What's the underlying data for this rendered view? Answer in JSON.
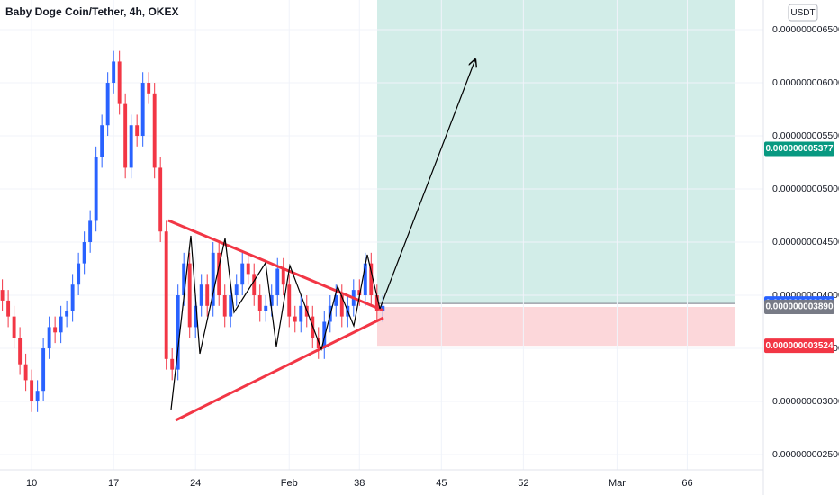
{
  "chart_data": {
    "type": "candlestick",
    "title": "Baby Doge Coin/Tether, 4h, OKEX",
    "currency": "USDT",
    "up_color": "#2962ff",
    "down_color": "#f23645",
    "xlim": [
      7.3,
      72.5
    ],
    "xticks": [
      10,
      17,
      24,
      {
        "value": 32,
        "label": "Feb"
      },
      38,
      45,
      52,
      {
        "value": 60,
        "label": "Mar"
      },
      66
    ],
    "ylim": [
      2.356e-09,
      6.78e-09
    ],
    "yticks": [
      {
        "value": 6.5e-09,
        "label": "0.000000006500"
      },
      {
        "value": 6e-09,
        "label": "0.000000006000"
      },
      {
        "value": 5.5e-09,
        "label": "0.000000005500"
      },
      {
        "value": 5e-09,
        "label": "0.000000005000"
      },
      {
        "value": 4.5e-09,
        "label": "0.000000004500"
      },
      {
        "value": 4e-09,
        "label": "0.000000004000"
      },
      {
        "value": 3.5e-09,
        "label": "0.000000003500"
      },
      {
        "value": 3e-09,
        "label": "0.000000003000"
      },
      {
        "value": 2.5e-09,
        "label": "0.000000002500"
      }
    ],
    "price_markers": [
      {
        "value": 5.377e-09,
        "label": "0.000000005377",
        "color": "#089981"
      },
      {
        "value": 3.923e-09,
        "label": "0.000000003923",
        "color": "#2962ff"
      },
      {
        "value": 3.89e-09,
        "label": "0.000000003890",
        "color": "#787b86"
      },
      {
        "value": 3.524e-09,
        "label": "0.000000003524",
        "color": "#f23645"
      }
    ],
    "x": [
      7.5,
      8,
      8.5,
      9,
      9.5,
      10,
      10.5,
      11,
      11.5,
      12,
      12.5,
      13,
      13.5,
      14,
      14.5,
      15,
      15.5,
      16,
      16.5,
      17,
      17.5,
      18,
      18.5,
      19,
      19.5,
      20,
      20.5,
      21,
      21.5,
      22,
      22.5,
      23,
      23.5,
      24,
      24.5,
      25,
      25.5,
      26,
      26.5,
      27,
      27.5,
      28,
      28.5,
      29,
      29.5,
      30,
      30.5,
      31,
      31.5,
      32,
      32.5,
      33,
      33.5,
      34,
      34.5,
      35,
      35.5,
      36,
      36.5,
      37,
      37.5,
      38,
      38.5,
      39,
      39.5,
      40
    ],
    "open": [
      4.05e-09,
      3.95e-09,
      3.8e-09,
      3.6e-09,
      3.35e-09,
      3.2e-09,
      3e-09,
      3.1e-09,
      3.5e-09,
      3.7e-09,
      3.65e-09,
      3.8e-09,
      3.85e-09,
      4.1e-09,
      4.3e-09,
      4.5e-09,
      4.7e-09,
      5.3e-09,
      5.6e-09,
      6e-09,
      6.2e-09,
      5.8e-09,
      5.2e-09,
      5.6e-09,
      5.5e-09,
      6e-09,
      5.9e-09,
      5.2e-09,
      4.6e-09,
      3.4e-09,
      3.3e-09,
      4e-09,
      4.3e-09,
      3.7e-09,
      3.9e-09,
      4.1e-09,
      3.9e-09,
      4.4e-09,
      4e-09,
      3.8e-09,
      4e-09,
      4.1e-09,
      4.3e-09,
      4.2e-09,
      4e-09,
      3.85e-09,
      3.9e-09,
      4e-09,
      4.25e-09,
      4.1e-09,
      3.8e-09,
      3.75e-09,
      3.9e-09,
      3.8e-09,
      3.6e-09,
      3.5e-09,
      3.75e-09,
      3.9e-09,
      4e-09,
      3.8e-09,
      3.9e-09,
      4.05e-09,
      4e-09,
      4.3e-09,
      4e-09,
      3.85e-09
    ],
    "high": [
      4.15e-09,
      4.05e-09,
      3.9e-09,
      3.7e-09,
      3.45e-09,
      3.3e-09,
      3.2e-09,
      3.6e-09,
      3.8e-09,
      3.8e-09,
      3.9e-09,
      3.95e-09,
      4.2e-09,
      4.4e-09,
      4.6e-09,
      4.8e-09,
      5.4e-09,
      5.7e-09,
      6.1e-09,
      6.3e-09,
      6.3e-09,
      5.9e-09,
      5.7e-09,
      5.7e-09,
      6.1e-09,
      6.1e-09,
      6e-09,
      5.3e-09,
      4.7e-09,
      3.5e-09,
      4.1e-09,
      4.4e-09,
      4.4e-09,
      4e-09,
      4.2e-09,
      4.2e-09,
      4.5e-09,
      4.5e-09,
      4.1e-09,
      4.1e-09,
      4.2e-09,
      4.4e-09,
      4.4e-09,
      4.3e-09,
      4.1e-09,
      4e-09,
      4.1e-09,
      4.35e-09,
      4.35e-09,
      4.2e-09,
      3.9e-09,
      4e-09,
      4e-09,
      3.9e-09,
      3.7e-09,
      3.85e-09,
      4e-09,
      4.1e-09,
      4.1e-09,
      4e-09,
      4.15e-09,
      4.15e-09,
      4.4e-09,
      4.4e-09,
      4.1e-09,
      4e-09
    ],
    "low": [
      3.85e-09,
      3.7e-09,
      3.5e-09,
      3.25e-09,
      3.1e-09,
      2.9e-09,
      2.9e-09,
      3e-09,
      3.4e-09,
      3.55e-09,
      3.55e-09,
      3.7e-09,
      3.75e-09,
      4e-09,
      4.2e-09,
      4.4e-09,
      4.6e-09,
      5.2e-09,
      5.5e-09,
      5.9e-09,
      5.7e-09,
      5.1e-09,
      5.1e-09,
      5.4e-09,
      5.4e-09,
      5.8e-09,
      5.1e-09,
      4.5e-09,
      3.3e-09,
      3.2e-09,
      3.2e-09,
      3.9e-09,
      3.6e-09,
      3.6e-09,
      3.8e-09,
      3.8e-09,
      3.8e-09,
      3.9e-09,
      3.7e-09,
      3.7e-09,
      3.9e-09,
      4e-09,
      4.1e-09,
      3.9e-09,
      3.75e-09,
      3.75e-09,
      3.8e-09,
      3.9e-09,
      4e-09,
      3.7e-09,
      3.65e-09,
      3.65e-09,
      3.7e-09,
      3.5e-09,
      3.4e-09,
      3.4e-09,
      3.65e-09,
      3.8e-09,
      3.7e-09,
      3.7e-09,
      3.8e-09,
      3.9e-09,
      3.9e-09,
      3.9e-09,
      3.75e-09,
      3.75e-09
    ],
    "close": [
      3.95e-09,
      3.8e-09,
      3.6e-09,
      3.35e-09,
      3.2e-09,
      3e-09,
      3.1e-09,
      3.5e-09,
      3.7e-09,
      3.65e-09,
      3.8e-09,
      3.85e-09,
      4.1e-09,
      4.3e-09,
      4.5e-09,
      4.7e-09,
      5.3e-09,
      5.6e-09,
      6e-09,
      6.2e-09,
      5.8e-09,
      5.2e-09,
      5.6e-09,
      5.5e-09,
      6e-09,
      5.9e-09,
      5.2e-09,
      4.6e-09,
      3.4e-09,
      3.3e-09,
      4e-09,
      4.3e-09,
      3.7e-09,
      3.9e-09,
      4.1e-09,
      3.9e-09,
      4.4e-09,
      4e-09,
      3.8e-09,
      4e-09,
      4.1e-09,
      4.3e-09,
      4.2e-09,
      4e-09,
      3.85e-09,
      3.9e-09,
      4e-09,
      4.25e-09,
      4.1e-09,
      3.8e-09,
      3.75e-09,
      3.9e-09,
      3.8e-09,
      3.6e-09,
      3.5e-09,
      3.75e-09,
      3.9e-09,
      4e-09,
      3.8e-09,
      3.9e-09,
      4.05e-09,
      4e-09,
      4.3e-09,
      4e-09,
      3.85e-09,
      3.9e-09
    ]
  }
}
